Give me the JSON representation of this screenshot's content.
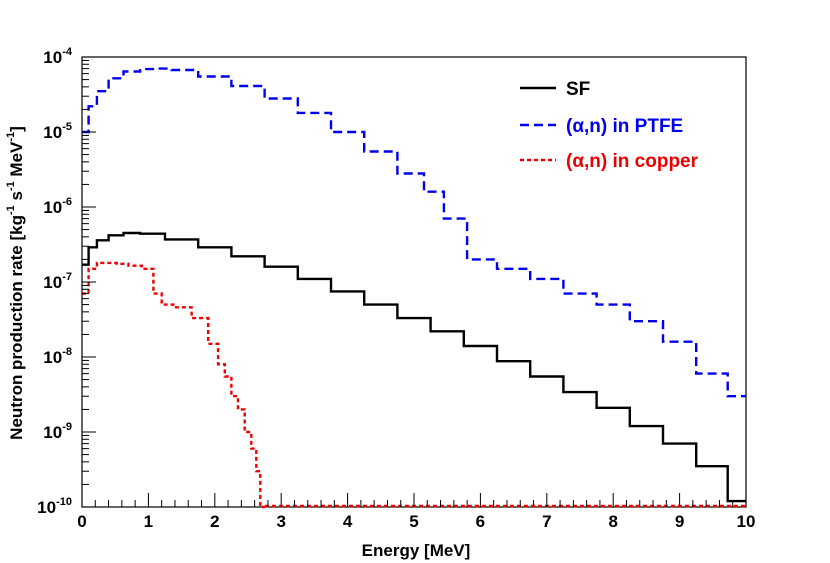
{
  "chart_data": {
    "type": "line",
    "xlabel": "Energy [MeV]",
    "ylabel": {
      "parts": [
        {
          "text": "Neutron production rate [kg",
          "sup": false
        },
        {
          "text": "-1",
          "sup": true
        },
        {
          "text": " s",
          "sup": false
        },
        {
          "text": "-1",
          "sup": true
        },
        {
          "text": " MeV",
          "sup": false
        },
        {
          "text": "-1",
          "sup": true
        },
        {
          "text": "]",
          "sup": false
        }
      ]
    },
    "xlim": [
      0,
      10
    ],
    "ylim": [
      1e-10,
      0.0001
    ],
    "yscale": "log",
    "grid": false,
    "legend_position": "top-right",
    "x_ticks": [
      {
        "value": 0,
        "label": "0"
      },
      {
        "value": 1,
        "label": "1"
      },
      {
        "value": 2,
        "label": "2"
      },
      {
        "value": 3,
        "label": "3"
      },
      {
        "value": 4,
        "label": "4"
      },
      {
        "value": 5,
        "label": "5"
      },
      {
        "value": 6,
        "label": "6"
      },
      {
        "value": 7,
        "label": "7"
      },
      {
        "value": 8,
        "label": "8"
      },
      {
        "value": 9,
        "label": "9"
      },
      {
        "value": 10,
        "label": "10"
      }
    ],
    "y_ticks": [
      {
        "value": 1e-10,
        "base": "10",
        "exp": "-10"
      },
      {
        "value": 1e-09,
        "base": "10",
        "exp": "-9"
      },
      {
        "value": 1e-08,
        "base": "10",
        "exp": "-8"
      },
      {
        "value": 1e-07,
        "base": "10",
        "exp": "-7"
      },
      {
        "value": 1e-06,
        "base": "10",
        "exp": "-6"
      },
      {
        "value": 1e-05,
        "base": "10",
        "exp": "-5"
      },
      {
        "value": 0.0001,
        "base": "10",
        "exp": "-4"
      }
    ],
    "series": [
      {
        "name": "SF",
        "color": "#000000",
        "dash": "solid",
        "x": [
          0.05,
          0.15,
          0.3,
          0.5,
          0.75,
          1.0,
          1.5,
          2.0,
          2.5,
          3.0,
          3.5,
          4.0,
          4.5,
          5.0,
          5.5,
          6.0,
          6.5,
          7.0,
          7.5,
          8.0,
          8.5,
          9.0,
          9.5,
          9.95
        ],
        "y": [
          1.7e-07,
          2.9e-07,
          3.6e-07,
          4.2e-07,
          4.5e-07,
          4.4e-07,
          3.7e-07,
          2.9e-07,
          2.2e-07,
          1.6e-07,
          1.1e-07,
          7.5e-08,
          5e-08,
          3.3e-08,
          2.2e-08,
          1.4e-08,
          8.8e-09,
          5.5e-09,
          3.4e-09,
          2.1e-09,
          1.2e-09,
          7e-10,
          3.5e-10,
          1.2e-10
        ]
      },
      {
        "name": "(α,n) in PTFE",
        "color": "#0000ee",
        "dash": "dashed",
        "x": [
          0.05,
          0.15,
          0.3,
          0.5,
          0.75,
          1.0,
          1.2,
          1.5,
          2.0,
          2.5,
          3.0,
          3.5,
          4.0,
          4.5,
          5.0,
          5.3,
          5.6,
          6.0,
          6.5,
          7.0,
          7.5,
          8.0,
          8.5,
          9.0,
          9.5,
          9.95
        ],
        "y": [
          1e-05,
          2.2e-05,
          3.5e-05,
          5.2e-05,
          6.4e-05,
          6.9e-05,
          7e-05,
          6.7e-05,
          5.5e-05,
          4.1e-05,
          2.8e-05,
          1.8e-05,
          1e-05,
          5.5e-06,
          2.8e-06,
          1.6e-06,
          7e-07,
          2e-07,
          1.5e-07,
          1.1e-07,
          7e-08,
          5e-08,
          3e-08,
          1.6e-08,
          6e-09,
          3e-09
        ]
      },
      {
        "name": "(α,n) in copper",
        "color": "#ee0000",
        "dash": "dotted",
        "x": [
          0.05,
          0.15,
          0.3,
          0.45,
          0.6,
          0.8,
          1.0,
          1.15,
          1.25,
          1.5,
          1.8,
          2.0,
          2.1,
          2.2,
          2.3,
          2.4,
          2.5,
          2.6,
          2.65,
          2.72
        ],
        "y": [
          7e-08,
          1.5e-07,
          1.8e-07,
          1.8e-07,
          1.75e-07,
          1.65e-07,
          1.5e-07,
          7e-08,
          5e-08,
          4.6e-08,
          3.3e-08,
          1.5e-08,
          8e-09,
          5.5e-09,
          3e-09,
          2e-09,
          1e-09,
          6e-10,
          3e-10,
          1e-10
        ]
      }
    ]
  }
}
